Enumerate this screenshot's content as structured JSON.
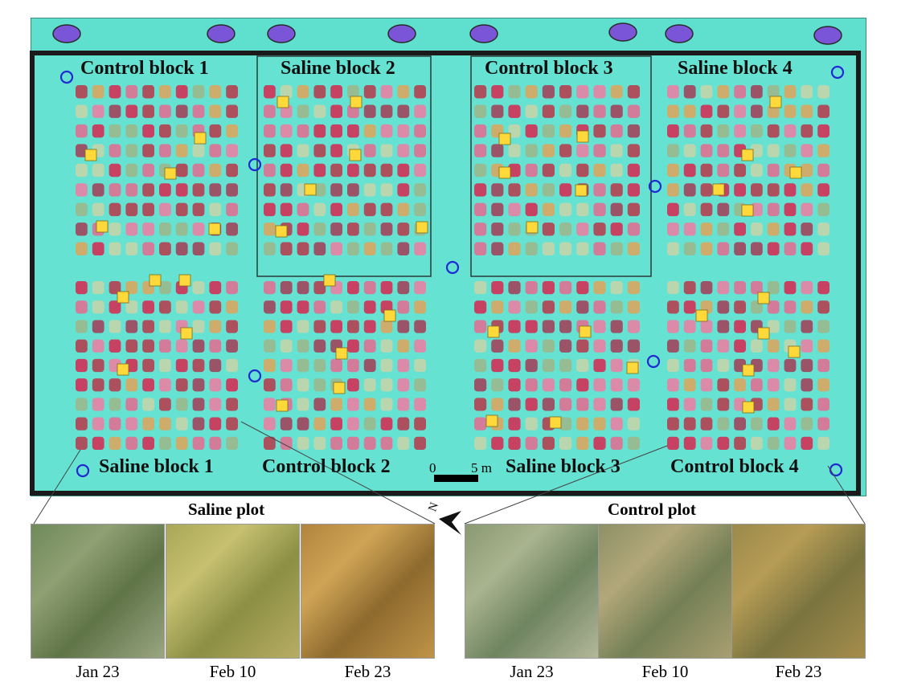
{
  "blocks_top": [
    "Control block 1",
    "Saline block 2",
    "Control block 3",
    "Saline block 4"
  ],
  "blocks_bottom": [
    "Saline block 1",
    "Control block 2",
    "Saline block 3",
    "Control block 4"
  ],
  "scale": {
    "zero": "0",
    "length": "5 m"
  },
  "north_symbol": "N",
  "saline_panel": {
    "title": "Saline plot",
    "dates": [
      "Jan 23",
      "Feb 10",
      "Feb 23"
    ]
  },
  "control_panel": {
    "title": "Control plot",
    "dates": [
      "Jan 23",
      "Feb 10",
      "Feb 23"
    ]
  },
  "colors": {
    "ground": "#5fe0cf",
    "plant_red": "#d8254f",
    "plant_pink": "#e56a90",
    "marker_fill": "#ffd83a",
    "circle_marker": "#1f2bd0"
  }
}
